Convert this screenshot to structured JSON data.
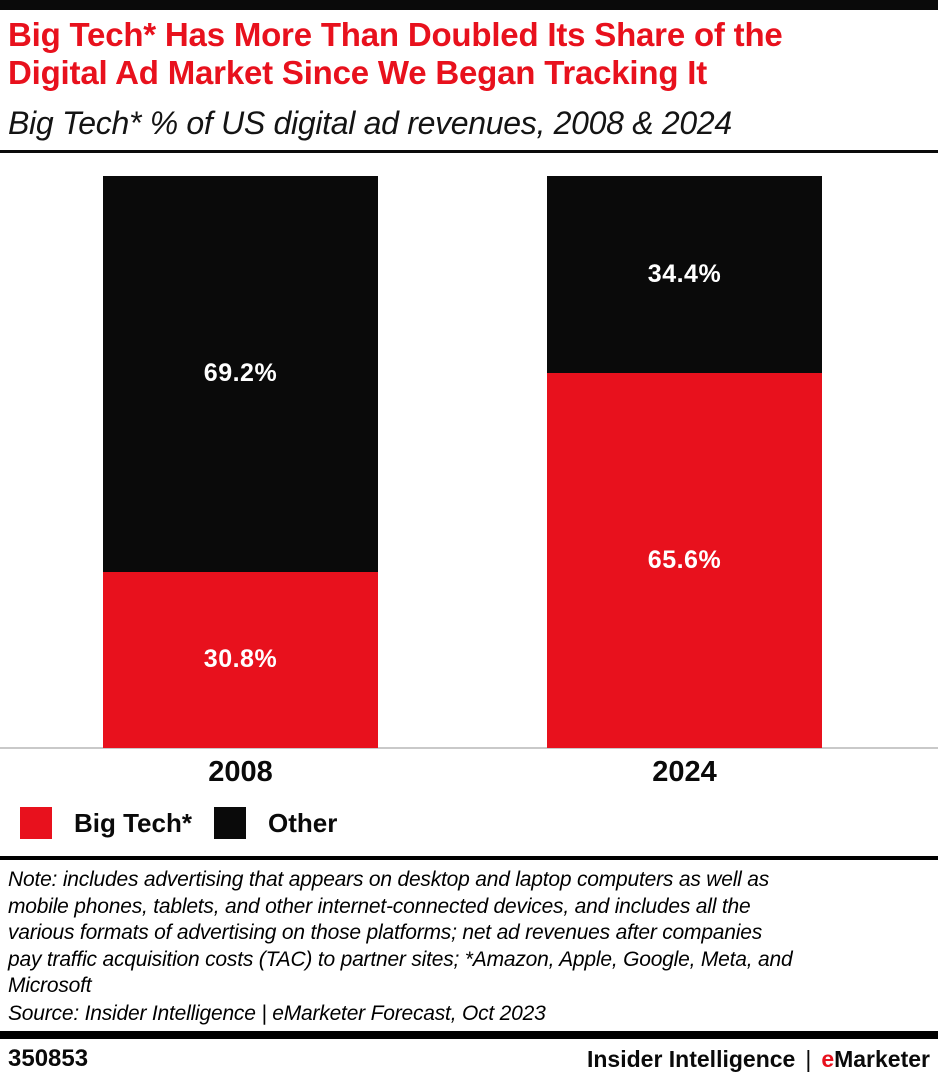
{
  "page": {
    "title": "Big Tech* Has More Than Doubled Its Share of the\nDigital Ad Market Since We Began Tracking It",
    "subtitle": "Big Tech* % of US digital ad revenues, 2008 & 2024",
    "title_color": "#e8111d"
  },
  "chart_data": {
    "type": "bar",
    "subtype": "stacked-100-percent-column",
    "title": "Big Tech* Has More Than Doubled Its Share of the Digital Ad Market Since We Began Tracking It",
    "subtitle": "Big Tech* % of US digital ad revenues, 2008 & 2024",
    "categories": [
      "2008",
      "2024"
    ],
    "series": [
      {
        "name": "Big Tech*",
        "color": "#e8111d",
        "values": [
          30.8,
          65.6
        ],
        "labels": [
          "30.8%",
          "65.6%"
        ]
      },
      {
        "name": "Other",
        "color": "#0a0a0a",
        "values": [
          69.2,
          34.4
        ],
        "labels": [
          "69.2%",
          "34.4%"
        ]
      }
    ],
    "stack_order_top_to_bottom": [
      "Other",
      "Big Tech*"
    ],
    "value_unit": "%",
    "ylim": [
      0,
      100
    ],
    "grid": false,
    "axis_line_color": "#c9c9c9",
    "value_label_color": "#ffffff",
    "legend_position": "bottom-left"
  },
  "note": {
    "text": "Note: includes advertising that appears on desktop and laptop computers as well as\nmobile phones, tablets, and other internet-connected devices, and includes all the\nvarious formats of advertising on those platforms; net ad revenues after companies\npay traffic acquisition costs (TAC) to partner sites; *Amazon, Apple, Google, Meta, and\nMicrosoft",
    "source": "Source: Insider Intelligence | eMarketer Forecast, Oct 2023"
  },
  "footer": {
    "chart_id": "350853",
    "brand_left": "Insider Intelligence",
    "separator": "|",
    "brand_e": "e",
    "brand_rest": "Marketer"
  }
}
